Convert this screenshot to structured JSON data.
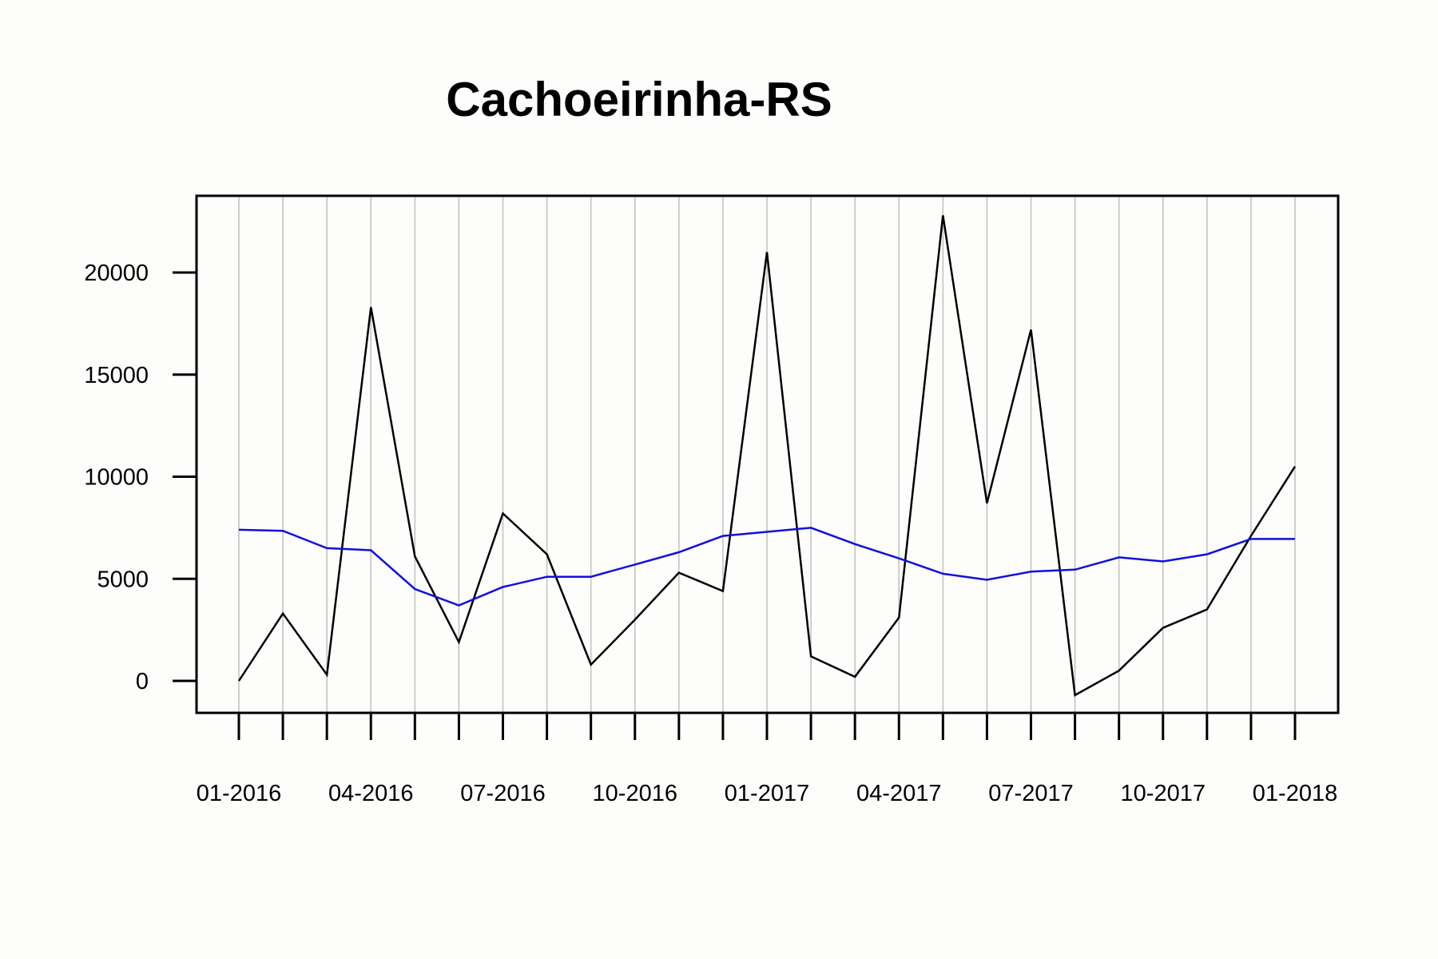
{
  "chart_data": {
    "type": "line",
    "title": "Cachoeirinha-RS",
    "xlabel": "",
    "ylabel": "",
    "x": [
      "01-2016",
      "02-2016",
      "03-2016",
      "04-2016",
      "05-2016",
      "06-2016",
      "07-2016",
      "08-2016",
      "09-2016",
      "10-2016",
      "11-2016",
      "12-2016",
      "01-2017",
      "02-2017",
      "03-2017",
      "04-2017",
      "05-2017",
      "06-2017",
      "07-2017",
      "08-2017",
      "09-2017",
      "10-2017",
      "11-2017",
      "12-2017",
      "01-2018"
    ],
    "x_tick_labels": [
      "01-2016",
      "04-2016",
      "07-2016",
      "10-2016",
      "01-2017",
      "04-2017",
      "07-2017",
      "10-2017",
      "01-2018"
    ],
    "y_ticks": [
      0,
      5000,
      10000,
      15000,
      20000
    ],
    "ylim": [
      -1500,
      23800
    ],
    "grid": "vertical",
    "legend": "none",
    "series": [
      {
        "color": "#000000",
        "values": [
          0,
          3300,
          300,
          18300,
          6100,
          1900,
          8200,
          6200,
          800,
          3000,
          5300,
          4400,
          21000,
          1200,
          200,
          3100,
          22800,
          8700,
          17200,
          -700,
          500,
          2600,
          3500,
          7100,
          10500
        ]
      },
      {
        "color": "#1010e0",
        "values": [
          7400,
          7350,
          6500,
          6400,
          4500,
          3700,
          4600,
          5100,
          5100,
          5700,
          6300,
          7100,
          7300,
          7500,
          6700,
          6000,
          5250,
          4950,
          5350,
          5450,
          6050,
          5850,
          6200,
          6950,
          6950
        ]
      }
    ]
  }
}
